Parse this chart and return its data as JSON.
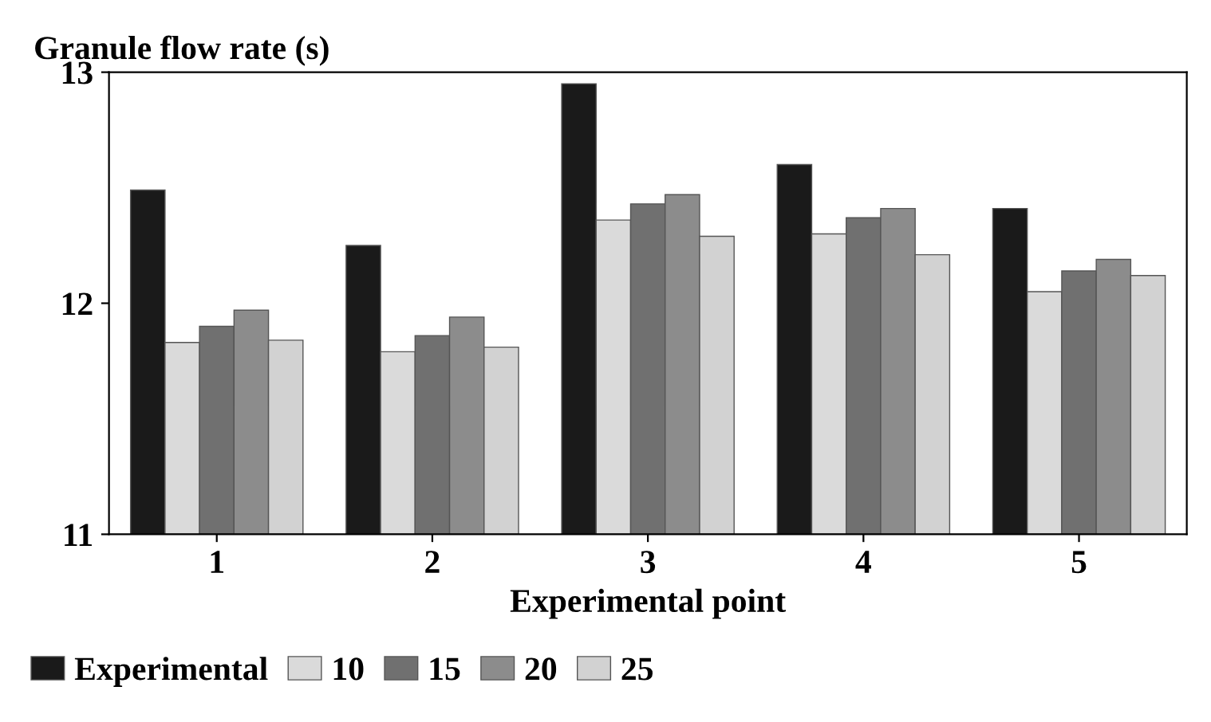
{
  "chart_data": {
    "type": "bar",
    "title": "Granule flow rate (s)",
    "xlabel": "Experimental point",
    "categories": [
      "1",
      "2",
      "3",
      "4",
      "5"
    ],
    "series": [
      {
        "name": "Experimental",
        "color": "#1a1a1a",
        "values": [
          12.49,
          12.25,
          12.95,
          12.6,
          12.41
        ]
      },
      {
        "name": "10",
        "color": "#dadada",
        "values": [
          11.83,
          11.79,
          12.36,
          12.3,
          12.05
        ]
      },
      {
        "name": "15",
        "color": "#707070",
        "values": [
          11.9,
          11.86,
          12.43,
          12.37,
          12.14
        ]
      },
      {
        "name": "20",
        "color": "#8c8c8c",
        "values": [
          11.97,
          11.94,
          12.47,
          12.41,
          12.19
        ]
      },
      {
        "name": "25",
        "color": "#d2d2d2",
        "values": [
          11.84,
          11.81,
          12.29,
          12.21,
          12.12
        ]
      }
    ],
    "ylim": [
      11,
      13
    ],
    "yticks": [
      11,
      12,
      13
    ],
    "grid": false,
    "legend": "bottom"
  }
}
